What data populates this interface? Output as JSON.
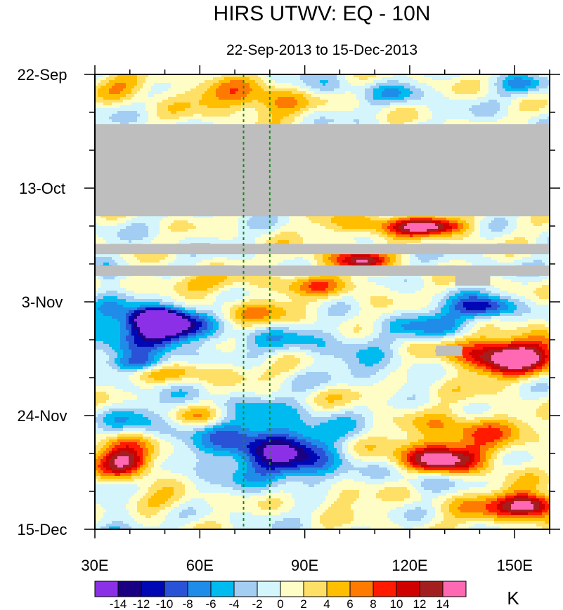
{
  "chart_data": {
    "type": "heatmap",
    "title": "HIRS UTWV: EQ - 10N",
    "subtitle": "22-Sep-2013 to 15-Dec-2013",
    "xlabel": "",
    "ylabel": "",
    "x_range": [
      30,
      160
    ],
    "x_ticks": [
      {
        "value": 30,
        "label": "30E"
      },
      {
        "value": 60,
        "label": "60E"
      },
      {
        "value": 90,
        "label": "90E"
      },
      {
        "value": 120,
        "label": "120E"
      },
      {
        "value": 150,
        "label": "150E"
      }
    ],
    "y_range_days": [
      0,
      84
    ],
    "y_ticks": [
      {
        "value": 0,
        "label": "22-Sep"
      },
      {
        "value": 21,
        "label": "13-Oct"
      },
      {
        "value": 42,
        "label": "3-Nov"
      },
      {
        "value": 63,
        "label": "24-Nov"
      },
      {
        "value": 84,
        "label": "15-Dec"
      }
    ],
    "reference_lines_lon": [
      72.5,
      80
    ],
    "colorbar": {
      "unit": "K",
      "colors": [
        "#8c30e8",
        "#1a0082",
        "#0008b5",
        "#2a52d6",
        "#1e8ce8",
        "#00bbf0",
        "#a3cdf2",
        "#d3f5fb",
        "#fffdc6",
        "#ffe066",
        "#ffbf00",
        "#ff7a00",
        "#ff1a00",
        "#d10000",
        "#a31f1f",
        "#ff69b4"
      ],
      "labels": [
        "-14",
        "-12",
        "-10",
        "-8",
        "-6",
        "-4",
        "-2",
        "0",
        "2",
        "4",
        "6",
        "8",
        "10",
        "12",
        "14"
      ]
    },
    "missing_color": "#bebebe",
    "missing_regions": [
      {
        "lon": [
          30,
          160
        ],
        "day": [
          9.2,
          26.2
        ]
      },
      {
        "lon": [
          30,
          160
        ],
        "day": [
          31.3,
          33.2
        ]
      },
      {
        "lon": [
          30,
          160
        ],
        "day": [
          35.3,
          37.2
        ]
      },
      {
        "lon": [
          133,
          143
        ],
        "day": [
          37.2,
          39.0
        ]
      },
      {
        "lon": [
          127.5,
          135
        ],
        "day": [
          50.1,
          52.0
        ]
      }
    ],
    "anomaly_features": [
      {
        "lon": 39,
        "day": 72,
        "value": 11,
        "rlon": 8,
        "rday": 2.5
      },
      {
        "lon": 38,
        "day": 69.5,
        "value": 6,
        "rlon": 12,
        "rday": 3.5
      },
      {
        "lon": 150,
        "day": 52,
        "value": 11,
        "rlon": 12,
        "rday": 3
      },
      {
        "lon": 145,
        "day": 51.5,
        "value": 7,
        "rlon": 18,
        "rday": 5
      },
      {
        "lon": 155,
        "day": 79.5,
        "value": 12,
        "rlon": 8,
        "rday": 2
      },
      {
        "lon": 147,
        "day": 80,
        "value": 6,
        "rlon": 18,
        "rday": 3.5
      },
      {
        "lon": 128,
        "day": 71,
        "value": 10,
        "rlon": 10,
        "rday": 2.5
      },
      {
        "lon": 130,
        "day": 70,
        "value": 6,
        "rlon": 20,
        "rday": 5
      },
      {
        "lon": 140,
        "day": 65,
        "value": 5,
        "rlon": 15,
        "rday": 3
      },
      {
        "lon": 126,
        "day": 28,
        "value": 10,
        "rlon": 10,
        "rday": 1.5
      },
      {
        "lon": 115,
        "day": 28,
        "value": 6,
        "rlon": 20,
        "rday": 2.5
      },
      {
        "lon": 107,
        "day": 34.5,
        "value": 9,
        "rlon": 6,
        "rday": 1.5
      },
      {
        "lon": 100,
        "day": 34,
        "value": 5,
        "rlon": 14,
        "rday": 2.5
      },
      {
        "lon": 57,
        "day": 38.5,
        "value": 5,
        "rlon": 18,
        "rday": 2
      },
      {
        "lon": 95,
        "day": 39,
        "value": 5,
        "rlon": 15,
        "rday": 2
      },
      {
        "lon": 47,
        "day": 44.8,
        "value": -10,
        "rlon": 6,
        "rday": 1.5
      },
      {
        "lon": 50,
        "day": 46.5,
        "value": -12,
        "rlon": 10,
        "rday": 2.5
      },
      {
        "lon": 50,
        "day": 46,
        "value": -6,
        "rlon": 18,
        "rday": 5
      },
      {
        "lon": 40,
        "day": 48,
        "value": -4,
        "rlon": 15,
        "rday": 5
      },
      {
        "lon": 43,
        "day": 53.5,
        "value": -8,
        "rlon": 8,
        "rday": 1.5
      },
      {
        "lon": 80,
        "day": 69,
        "value": -8,
        "rlon": 14,
        "rday": 4
      },
      {
        "lon": 78,
        "day": 67,
        "value": -5,
        "rlon": 25,
        "rday": 8
      },
      {
        "lon": 90,
        "day": 72.5,
        "value": -6,
        "rlon": 12,
        "rday": 3
      },
      {
        "lon": 142,
        "day": 43,
        "value": -9,
        "rlon": 8,
        "rday": 2
      },
      {
        "lon": 136,
        "day": 44,
        "value": -4,
        "rlon": 12,
        "rday": 3
      },
      {
        "lon": 127,
        "day": 47,
        "value": -6,
        "rlon": 12,
        "rday": 2.5
      },
      {
        "lon": 68,
        "day": 4,
        "value": 6,
        "rlon": 15,
        "rday": 3
      },
      {
        "lon": 82,
        "day": 5.5,
        "value": 5,
        "rlon": 10,
        "rday": 2.5
      },
      {
        "lon": 39,
        "day": 2,
        "value": 5,
        "rlon": 9,
        "rday": 2.5
      },
      {
        "lon": 118,
        "day": 3.5,
        "value": -4,
        "rlon": 8,
        "rday": 2
      },
      {
        "lon": 152,
        "day": 2,
        "value": -5,
        "rlon": 6,
        "rday": 2
      },
      {
        "lon": 96,
        "day": 2.5,
        "value": -3,
        "rlon": 8,
        "rday": 2
      },
      {
        "lon": 75,
        "day": 44,
        "value": 5,
        "rlon": 18,
        "rday": 3
      },
      {
        "lon": 90,
        "day": 49,
        "value": -4,
        "rlon": 18,
        "rday": 3
      },
      {
        "lon": 60,
        "day": 55,
        "value": 5,
        "rlon": 22,
        "rday": 2
      },
      {
        "lon": 110,
        "day": 55,
        "value": -4,
        "rlon": 12,
        "rday": 3
      },
      {
        "lon": 105,
        "day": 59,
        "value": 4,
        "rlon": 15,
        "rday": 2
      },
      {
        "lon": 42,
        "day": 64,
        "value": -4,
        "rlon": 10,
        "rday": 3
      },
      {
        "lon": 60,
        "day": 63,
        "value": 5,
        "rlon": 10,
        "rday": 2
      },
      {
        "lon": 48,
        "day": 79,
        "value": 4,
        "rlon": 14,
        "rday": 2
      },
      {
        "lon": 100,
        "day": 78,
        "value": 4,
        "rlon": 10,
        "rday": 2.5
      },
      {
        "lon": 125,
        "day": 75,
        "value": -5,
        "rlon": 10,
        "rday": 2.5
      },
      {
        "lon": 36,
        "day": 81,
        "value": -4,
        "rlon": 6,
        "rday": 3
      },
      {
        "lon": 33,
        "day": 36.5,
        "value": -5,
        "rlon": 4,
        "rday": 3
      },
      {
        "lon": 33,
        "day": 85,
        "value": -4,
        "rlon": 5,
        "rday": 1.5
      }
    ]
  }
}
